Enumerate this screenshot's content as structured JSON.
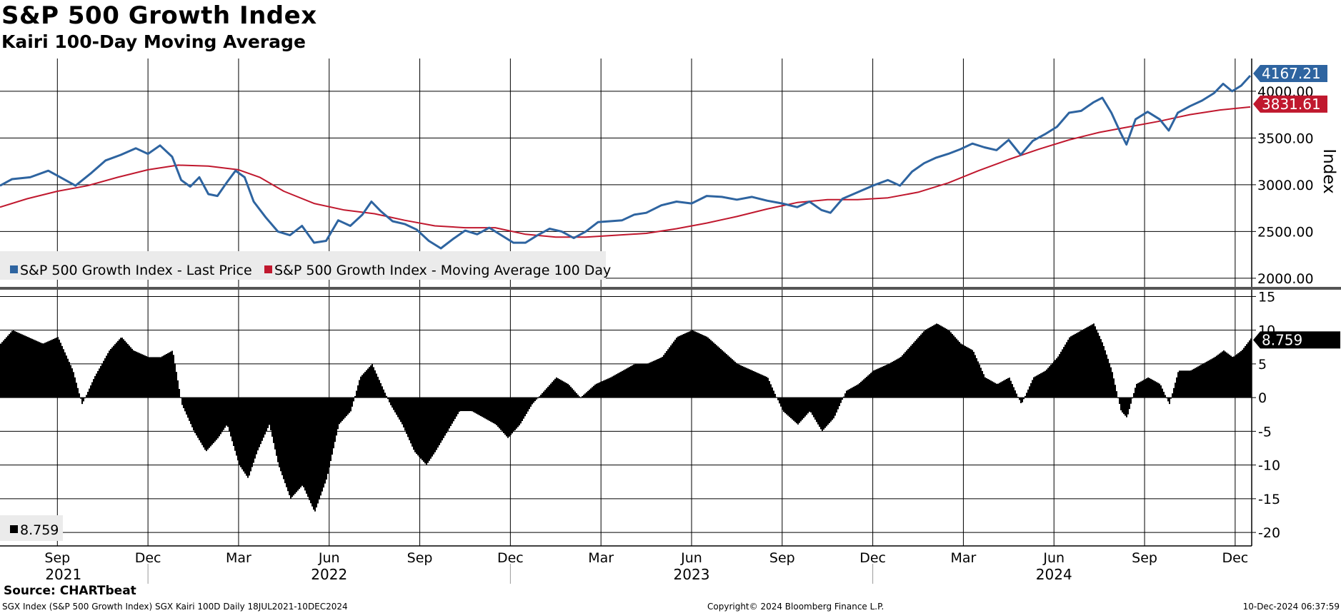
{
  "header": {
    "title": "S&P 500 Growth Index",
    "subtitle": "Kairi 100-Day Moving Average"
  },
  "footer": {
    "source": "Source: CHARTbeat",
    "left": "SGX Index (S&P 500 Growth Index) SGX Kairi 100D  Daily 18JUL2021-10DEC2024",
    "center": "Copyright© 2024 Bloomberg Finance L.P.",
    "right": "10-Dec-2024 06:37:59"
  },
  "colors": {
    "price": "#2e64a0",
    "ma": "#c0182e",
    "kairi": "#000000",
    "grid": "#000000"
  },
  "chart_data": [
    {
      "type": "line",
      "title": "S&P 500 Growth Index",
      "ylabel": "Index",
      "ylim": [
        1900,
        4350
      ],
      "yticks": [
        2000,
        2500,
        3000,
        3500,
        4000
      ],
      "ytick_labels": [
        "2000.00",
        "2500.00",
        "3000.00",
        "3500.00",
        "4000.00"
      ],
      "x_unit": "months since Jul 2021",
      "xlim": [
        0.6,
        42.0
      ],
      "series": [
        {
          "name": "S&P 500 Growth Index - Last Price",
          "last_value": "4167.21",
          "points": [
            [
              0.6,
              2990
            ],
            [
              1.0,
              3060
            ],
            [
              1.6,
              3080
            ],
            [
              2.2,
              3150
            ],
            [
              2.6,
              3080
            ],
            [
              3.1,
              2990
            ],
            [
              3.6,
              3120
            ],
            [
              4.1,
              3260
            ],
            [
              4.6,
              3320
            ],
            [
              5.1,
              3390
            ],
            [
              5.5,
              3330
            ],
            [
              5.9,
              3420
            ],
            [
              6.3,
              3300
            ],
            [
              6.6,
              3050
            ],
            [
              6.9,
              2980
            ],
            [
              7.2,
              3080
            ],
            [
              7.5,
              2900
            ],
            [
              7.8,
              2880
            ],
            [
              8.1,
              3020
            ],
            [
              8.4,
              3150
            ],
            [
              8.7,
              3080
            ],
            [
              9.0,
              2820
            ],
            [
              9.4,
              2650
            ],
            [
              9.8,
              2500
            ],
            [
              10.2,
              2460
            ],
            [
              10.6,
              2560
            ],
            [
              11.0,
              2380
            ],
            [
              11.4,
              2400
            ],
            [
              11.8,
              2620
            ],
            [
              12.2,
              2560
            ],
            [
              12.6,
              2680
            ],
            [
              12.9,
              2820
            ],
            [
              13.2,
              2720
            ],
            [
              13.6,
              2610
            ],
            [
              14.0,
              2580
            ],
            [
              14.4,
              2520
            ],
            [
              14.8,
              2400
            ],
            [
              15.2,
              2320
            ],
            [
              15.6,
              2420
            ],
            [
              16.0,
              2510
            ],
            [
              16.4,
              2470
            ],
            [
              16.8,
              2540
            ],
            [
              17.2,
              2460
            ],
            [
              17.6,
              2380
            ],
            [
              18.0,
              2380
            ],
            [
              18.4,
              2460
            ],
            [
              18.8,
              2530
            ],
            [
              19.2,
              2500
            ],
            [
              19.6,
              2430
            ],
            [
              20.0,
              2500
            ],
            [
              20.4,
              2600
            ],
            [
              20.8,
              2610
            ],
            [
              21.2,
              2620
            ],
            [
              21.6,
              2680
            ],
            [
              22.0,
              2700
            ],
            [
              22.5,
              2780
            ],
            [
              23.0,
              2820
            ],
            [
              23.5,
              2800
            ],
            [
              24.0,
              2880
            ],
            [
              24.5,
              2870
            ],
            [
              25.0,
              2840
            ],
            [
              25.5,
              2870
            ],
            [
              26.0,
              2830
            ],
            [
              26.5,
              2800
            ],
            [
              27.0,
              2760
            ],
            [
              27.4,
              2820
            ],
            [
              27.8,
              2730
            ],
            [
              28.1,
              2700
            ],
            [
              28.5,
              2850
            ],
            [
              29.0,
              2920
            ],
            [
              29.5,
              2990
            ],
            [
              30.0,
              3050
            ],
            [
              30.4,
              2990
            ],
            [
              30.8,
              3140
            ],
            [
              31.2,
              3230
            ],
            [
              31.6,
              3290
            ],
            [
              32.0,
              3330
            ],
            [
              32.4,
              3380
            ],
            [
              32.8,
              3440
            ],
            [
              33.2,
              3400
            ],
            [
              33.6,
              3370
            ],
            [
              34.0,
              3480
            ],
            [
              34.4,
              3320
            ],
            [
              34.8,
              3470
            ],
            [
              35.2,
              3540
            ],
            [
              35.6,
              3620
            ],
            [
              36.0,
              3770
            ],
            [
              36.4,
              3790
            ],
            [
              36.8,
              3880
            ],
            [
              37.1,
              3930
            ],
            [
              37.4,
              3770
            ],
            [
              37.7,
              3560
            ],
            [
              37.9,
              3430
            ],
            [
              38.2,
              3700
            ],
            [
              38.6,
              3780
            ],
            [
              39.0,
              3700
            ],
            [
              39.3,
              3580
            ],
            [
              39.6,
              3770
            ],
            [
              40.0,
              3840
            ],
            [
              40.4,
              3900
            ],
            [
              40.8,
              3980
            ],
            [
              41.1,
              4080
            ],
            [
              41.4,
              4000
            ],
            [
              41.7,
              4060
            ],
            [
              42.0,
              4167
            ]
          ]
        },
        {
          "name": "S&P 500 Growth Index - Moving Average 100 Day",
          "last_value": "3831.61",
          "points": [
            [
              0.6,
              2760
            ],
            [
              1.5,
              2850
            ],
            [
              2.5,
              2930
            ],
            [
              3.5,
              2990
            ],
            [
              4.5,
              3080
            ],
            [
              5.5,
              3160
            ],
            [
              6.5,
              3210
            ],
            [
              7.5,
              3200
            ],
            [
              8.5,
              3160
            ],
            [
              9.2,
              3080
            ],
            [
              10.0,
              2930
            ],
            [
              11.0,
              2800
            ],
            [
              12.0,
              2730
            ],
            [
              13.0,
              2690
            ],
            [
              14.0,
              2620
            ],
            [
              15.0,
              2560
            ],
            [
              16.0,
              2540
            ],
            [
              17.0,
              2540
            ],
            [
              18.0,
              2470
            ],
            [
              19.0,
              2440
            ],
            [
              20.0,
              2440
            ],
            [
              21.0,
              2460
            ],
            [
              22.0,
              2480
            ],
            [
              23.0,
              2530
            ],
            [
              24.0,
              2590
            ],
            [
              25.0,
              2660
            ],
            [
              26.0,
              2740
            ],
            [
              27.0,
              2810
            ],
            [
              28.0,
              2840
            ],
            [
              29.0,
              2840
            ],
            [
              30.0,
              2860
            ],
            [
              31.0,
              2920
            ],
            [
              32.0,
              3020
            ],
            [
              33.0,
              3150
            ],
            [
              34.0,
              3270
            ],
            [
              35.0,
              3380
            ],
            [
              36.0,
              3480
            ],
            [
              37.0,
              3560
            ],
            [
              38.0,
              3620
            ],
            [
              39.0,
              3680
            ],
            [
              40.0,
              3750
            ],
            [
              41.0,
              3800
            ],
            [
              42.0,
              3832
            ]
          ]
        }
      ],
      "legend": [
        "S&P 500 Growth Index - Last Price",
        "S&P 500 Growth Index - Moving Average 100 Day"
      ],
      "legend_position": "bottom-left"
    },
    {
      "type": "bar",
      "title": "SGX Kairi 100D",
      "ylim": [
        -22,
        16
      ],
      "yticks": [
        -20,
        -15,
        -10,
        -5,
        0,
        5,
        10,
        15
      ],
      "ytick_labels": [
        "-20",
        "-15",
        "-10",
        "-5",
        "0",
        "5",
        "10",
        "15"
      ],
      "last_value": "8.759",
      "legend": "8.759",
      "points": [
        [
          0.6,
          8
        ],
        [
          1.0,
          10
        ],
        [
          1.5,
          9
        ],
        [
          2.0,
          8
        ],
        [
          2.5,
          9
        ],
        [
          3.0,
          4
        ],
        [
          3.3,
          -1
        ],
        [
          3.7,
          3
        ],
        [
          4.2,
          7
        ],
        [
          4.6,
          9
        ],
        [
          5.0,
          7
        ],
        [
          5.5,
          6
        ],
        [
          5.9,
          6
        ],
        [
          6.3,
          7
        ],
        [
          6.6,
          -1
        ],
        [
          7.0,
          -5
        ],
        [
          7.4,
          -8
        ],
        [
          7.8,
          -6
        ],
        [
          8.1,
          -4
        ],
        [
          8.5,
          -10
        ],
        [
          8.8,
          -12
        ],
        [
          9.1,
          -8
        ],
        [
          9.5,
          -4
        ],
        [
          9.8,
          -10
        ],
        [
          10.2,
          -15
        ],
        [
          10.6,
          -13
        ],
        [
          11.0,
          -17
        ],
        [
          11.4,
          -12
        ],
        [
          11.8,
          -4
        ],
        [
          12.2,
          -2
        ],
        [
          12.5,
          3
        ],
        [
          12.9,
          5
        ],
        [
          13.2,
          2
        ],
        [
          13.5,
          -1
        ],
        [
          13.9,
          -4
        ],
        [
          14.3,
          -8
        ],
        [
          14.7,
          -10
        ],
        [
          15.0,
          -8
        ],
        [
          15.4,
          -5
        ],
        [
          15.8,
          -2
        ],
        [
          16.2,
          -2
        ],
        [
          16.6,
          -3
        ],
        [
          17.0,
          -4
        ],
        [
          17.4,
          -6
        ],
        [
          17.8,
          -4
        ],
        [
          18.2,
          -1
        ],
        [
          18.6,
          1
        ],
        [
          19.0,
          3
        ],
        [
          19.4,
          2
        ],
        [
          19.8,
          0
        ],
        [
          20.3,
          2
        ],
        [
          20.8,
          3
        ],
        [
          21.2,
          4
        ],
        [
          21.6,
          5
        ],
        [
          22.0,
          5
        ],
        [
          22.5,
          6
        ],
        [
          23.0,
          9
        ],
        [
          23.5,
          10
        ],
        [
          24.0,
          9
        ],
        [
          24.5,
          7
        ],
        [
          25.0,
          5
        ],
        [
          25.5,
          4
        ],
        [
          26.0,
          3
        ],
        [
          26.5,
          -2
        ],
        [
          27.0,
          -4
        ],
        [
          27.4,
          -2
        ],
        [
          27.8,
          -5
        ],
        [
          28.2,
          -3
        ],
        [
          28.6,
          1
        ],
        [
          29.0,
          2
        ],
        [
          29.5,
          4
        ],
        [
          30.0,
          5
        ],
        [
          30.4,
          6
        ],
        [
          30.8,
          8
        ],
        [
          31.2,
          10
        ],
        [
          31.6,
          11
        ],
        [
          32.0,
          10
        ],
        [
          32.4,
          8
        ],
        [
          32.8,
          7
        ],
        [
          33.2,
          3
        ],
        [
          33.6,
          2
        ],
        [
          34.0,
          3
        ],
        [
          34.4,
          -1
        ],
        [
          34.8,
          3
        ],
        [
          35.2,
          4
        ],
        [
          35.6,
          6
        ],
        [
          36.0,
          9
        ],
        [
          36.4,
          10
        ],
        [
          36.8,
          11
        ],
        [
          37.1,
          8
        ],
        [
          37.4,
          4
        ],
        [
          37.7,
          -2
        ],
        [
          37.9,
          -3
        ],
        [
          38.2,
          2
        ],
        [
          38.6,
          3
        ],
        [
          39.0,
          2
        ],
        [
          39.3,
          -1
        ],
        [
          39.6,
          4
        ],
        [
          40.0,
          4
        ],
        [
          40.4,
          5
        ],
        [
          40.8,
          6
        ],
        [
          41.1,
          7
        ],
        [
          41.4,
          6
        ],
        [
          41.7,
          7
        ],
        [
          42.0,
          8.759
        ]
      ]
    }
  ],
  "x_axis": {
    "month_labels": [
      "Sep",
      "Dec",
      "Mar",
      "Jun",
      "Sep",
      "Dec",
      "Mar",
      "Jun",
      "Sep",
      "Dec",
      "Mar",
      "Jun",
      "Sep",
      "Dec"
    ],
    "month_values": [
      2.5,
      5.5,
      8.5,
      11.5,
      14.5,
      17.5,
      20.5,
      23.5,
      26.5,
      29.5,
      32.5,
      35.5,
      38.5,
      41.5
    ],
    "year_labels": [
      "2021",
      "2022",
      "2023",
      "2024"
    ],
    "year_values": [
      2.7,
      11.5,
      23.5,
      35.5
    ],
    "year_dividers": [
      5.5,
      17.5,
      29.5
    ]
  }
}
